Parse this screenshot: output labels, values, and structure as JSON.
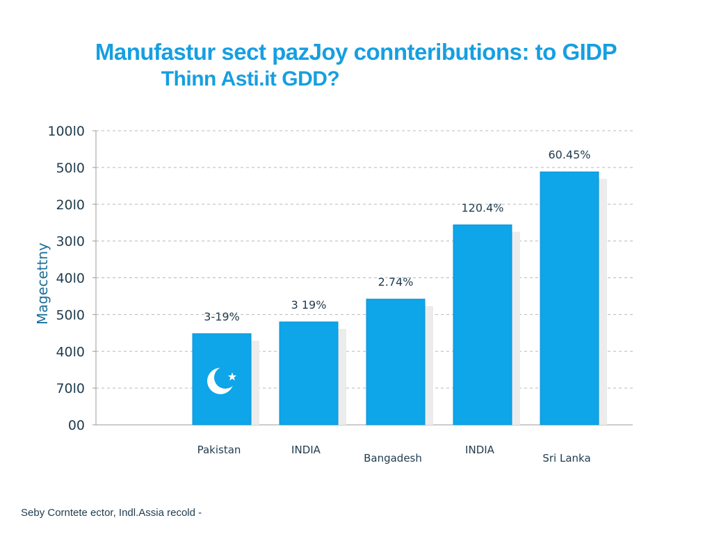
{
  "chart_data": {
    "type": "bar",
    "title": "Manufastur sect pazJoy connteributions: to GIDP",
    "subtitle": "Thinn Asti.it GDD?",
    "ylabel": "Magecettny",
    "xlabel": "",
    "y_tick_labels": [
      "00",
      "70l0",
      "40l0",
      "50l0",
      "40l0",
      "30l0",
      "20l0",
      "50l0",
      "100l0"
    ],
    "ylim_note_free": true,
    "ylim": [
      0,
      8
    ],
    "grid": true,
    "categories": [
      "Pakistan",
      "INDIA",
      "Bangadesh",
      "INDIA",
      "Sri Lanka"
    ],
    "values": [
      2.48,
      2.8,
      3.42,
      5.44,
      6.88
    ],
    "data_labels": [
      "3-19%",
      "3 19%",
      "2.74%",
      "120.4%",
      "60.45%"
    ],
    "bar_color": "#0ea5e9",
    "shadow_color": "#ececec",
    "flag_icon_on_first_bar": "crescent-star-icon"
  },
  "source": "Seby Corntete ector, Indl.Assia recold   -"
}
